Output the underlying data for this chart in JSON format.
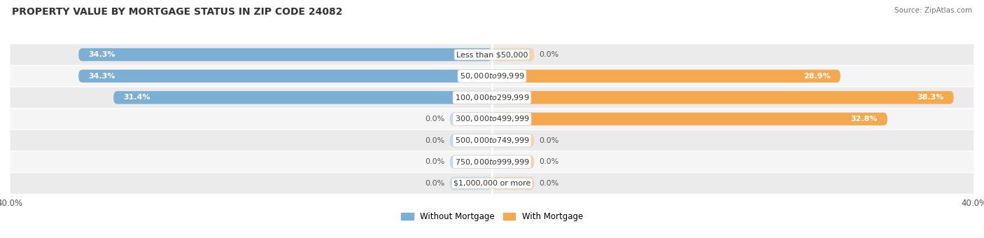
{
  "title": "PROPERTY VALUE BY MORTGAGE STATUS IN ZIP CODE 24082",
  "source": "Source: ZipAtlas.com",
  "categories": [
    "Less than $50,000",
    "$50,000 to $99,999",
    "$100,000 to $299,999",
    "$300,000 to $499,999",
    "$500,000 to $749,999",
    "$750,000 to $999,999",
    "$1,000,000 or more"
  ],
  "without_mortgage": [
    34.3,
    34.3,
    31.4,
    0.0,
    0.0,
    0.0,
    0.0
  ],
  "with_mortgage": [
    0.0,
    28.9,
    38.3,
    32.8,
    0.0,
    0.0,
    0.0
  ],
  "color_without": "#7BAFD4",
  "color_with": "#F5A94E",
  "color_without_zero": "#C5D9E8",
  "color_with_zero": "#FAD4A6",
  "axis_limit": 40.0,
  "bar_height": 0.6,
  "zero_stub": 3.5,
  "bg_row_even": "#EBEBEB",
  "bg_row_odd": "#F5F5F5",
  "title_fontsize": 10,
  "label_fontsize": 8,
  "value_fontsize": 8,
  "tick_fontsize": 8.5,
  "legend_fontsize": 8.5
}
